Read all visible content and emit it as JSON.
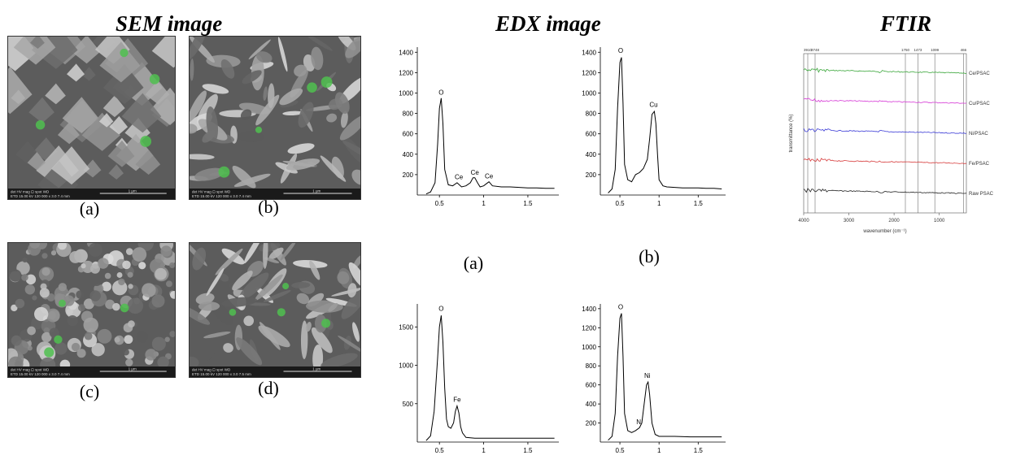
{
  "headings": {
    "sem": "SEM image",
    "edx": "EDX image",
    "ftir": "FTIR"
  },
  "sem_labels": [
    "(a)",
    "(b)",
    "(c)",
    "(d)"
  ],
  "sem_scalebar": {
    "meta_line1": "det  HV   mag  ⊡  spot  WD",
    "meta_a": "ETD 15.00 kV  120 000 x  3.0  7.4 mm",
    "meta_b": "ETD 15.00 kV  120 000 x  3.0  7.4 mm",
    "meta_c": "ETD 15.00 kV  120 000 x  3.0  7.4 mm",
    "meta_d": "ETD 15.00 kV  120 000 x  3.0  7.5 mm",
    "scale": "1 µm"
  },
  "edx_labels": [
    "(a)",
    "(b)"
  ],
  "chart_data": [
    {
      "type": "line",
      "panel": "EDX-Ce",
      "x": [
        0.35,
        0.4,
        0.45,
        0.48,
        0.5,
        0.52,
        0.54,
        0.56,
        0.6,
        0.65,
        0.7,
        0.75,
        0.8,
        0.85,
        0.88,
        0.9,
        0.93,
        0.96,
        1.0,
        1.03,
        1.06,
        1.1,
        1.2,
        1.3,
        1.4,
        1.5,
        1.6,
        1.7,
        1.8
      ],
      "y": [
        10,
        30,
        120,
        500,
        850,
        950,
        700,
        250,
        100,
        90,
        120,
        80,
        90,
        120,
        170,
        170,
        120,
        80,
        90,
        110,
        130,
        90,
        80,
        80,
        75,
        70,
        70,
        65,
        65
      ],
      "ylim": [
        0,
        1450
      ],
      "xlim": [
        0.25,
        1.85
      ],
      "yticks": [
        200,
        400,
        600,
        800,
        1000,
        1200,
        1400
      ],
      "xticks": [
        0.5,
        1,
        1.5
      ],
      "annotations": [
        {
          "text": "O",
          "x": 0.52,
          "y": 960
        },
        {
          "text": "Ce",
          "x": 0.72,
          "y": 130
        },
        {
          "text": "Ce",
          "x": 0.9,
          "y": 175
        },
        {
          "text": "Ce",
          "x": 1.06,
          "y": 140
        }
      ]
    },
    {
      "type": "line",
      "panel": "EDX-Cu",
      "x": [
        0.35,
        0.4,
        0.44,
        0.47,
        0.5,
        0.52,
        0.54,
        0.56,
        0.6,
        0.65,
        0.7,
        0.75,
        0.8,
        0.85,
        0.88,
        0.91,
        0.94,
        0.96,
        0.98,
        1.0,
        1.05,
        1.1,
        1.2,
        1.3,
        1.4,
        1.5,
        1.6,
        1.7,
        1.8
      ],
      "y": [
        20,
        60,
        250,
        850,
        1300,
        1350,
        900,
        300,
        150,
        130,
        200,
        220,
        260,
        350,
        550,
        790,
        820,
        700,
        400,
        150,
        90,
        80,
        75,
        70,
        70,
        70,
        65,
        65,
        60
      ],
      "ylim": [
        0,
        1450
      ],
      "xlim": [
        0.25,
        1.85
      ],
      "yticks": [
        200,
        400,
        600,
        800,
        1000,
        1200,
        1400
      ],
      "xticks": [
        0.5,
        1,
        1.5
      ],
      "annotations": [
        {
          "text": "O",
          "x": 0.51,
          "y": 1370
        },
        {
          "text": "Cu",
          "x": 0.93,
          "y": 840
        }
      ]
    },
    {
      "type": "line",
      "panel": "EDX-Fe",
      "x": [
        0.35,
        0.4,
        0.44,
        0.48,
        0.5,
        0.52,
        0.54,
        0.56,
        0.58,
        0.6,
        0.63,
        0.66,
        0.68,
        0.7,
        0.72,
        0.74,
        0.76,
        0.8,
        0.9,
        1.0,
        1.2,
        1.4,
        1.6,
        1.8
      ],
      "y": [
        20,
        80,
        400,
        1100,
        1500,
        1650,
        1300,
        700,
        300,
        200,
        180,
        250,
        400,
        470,
        380,
        200,
        120,
        60,
        50,
        50,
        50,
        50,
        50,
        50
      ],
      "ylim": [
        0,
        1800
      ],
      "xlim": [
        0.25,
        1.85
      ],
      "yticks": [
        500,
        1000,
        1500
      ],
      "xticks": [
        0.5,
        1,
        1.5
      ],
      "annotations": [
        {
          "text": "O",
          "x": 0.52,
          "y": 1680
        },
        {
          "text": "Fe",
          "x": 0.7,
          "y": 490
        }
      ]
    },
    {
      "type": "line",
      "panel": "EDX-Ni",
      "x": [
        0.35,
        0.4,
        0.44,
        0.47,
        0.5,
        0.52,
        0.54,
        0.56,
        0.6,
        0.65,
        0.7,
        0.75,
        0.78,
        0.81,
        0.84,
        0.86,
        0.88,
        0.91,
        0.95,
        1.0,
        1.2,
        1.4,
        1.6,
        1.8
      ],
      "y": [
        20,
        60,
        300,
        900,
        1300,
        1350,
        900,
        300,
        120,
        100,
        120,
        150,
        200,
        400,
        600,
        630,
        500,
        200,
        80,
        60,
        60,
        55,
        55,
        55
      ],
      "ylim": [
        0,
        1450
      ],
      "xlim": [
        0.25,
        1.85
      ],
      "yticks": [
        200,
        400,
        600,
        800,
        1000,
        1200,
        1400
      ],
      "xticks": [
        0.5,
        1,
        1.5
      ],
      "annotations": [
        {
          "text": "O",
          "x": 0.51,
          "y": 1370
        },
        {
          "text": "Ni",
          "x": 0.85,
          "y": 650
        },
        {
          "text": "N",
          "x": 0.74,
          "y": 160
        }
      ]
    },
    {
      "type": "line",
      "panel": "FTIR",
      "xlabel": "wavenumber (cm⁻¹)",
      "ylabel": "transmittance (%)",
      "xlim": [
        4000,
        400
      ],
      "xticks": [
        4000,
        3000,
        2000,
        1000
      ],
      "peak_lines": [
        "3910",
        "3748",
        "1750",
        "1473",
        "1099",
        "466"
      ],
      "peak_values": [
        3910,
        3748,
        1750,
        1473,
        1099,
        466
      ],
      "series": [
        {
          "name": "Ce/PSAC",
          "color": "#3aa63a"
        },
        {
          "name": "Cu/PSAC",
          "color": "#d63ad6"
        },
        {
          "name": "Ni/PSAC",
          "color": "#3a3ad6"
        },
        {
          "name": "Fe/PSAC",
          "color": "#d63a3a"
        },
        {
          "name": "Raw PSAC",
          "color": "#222222"
        }
      ]
    }
  ]
}
